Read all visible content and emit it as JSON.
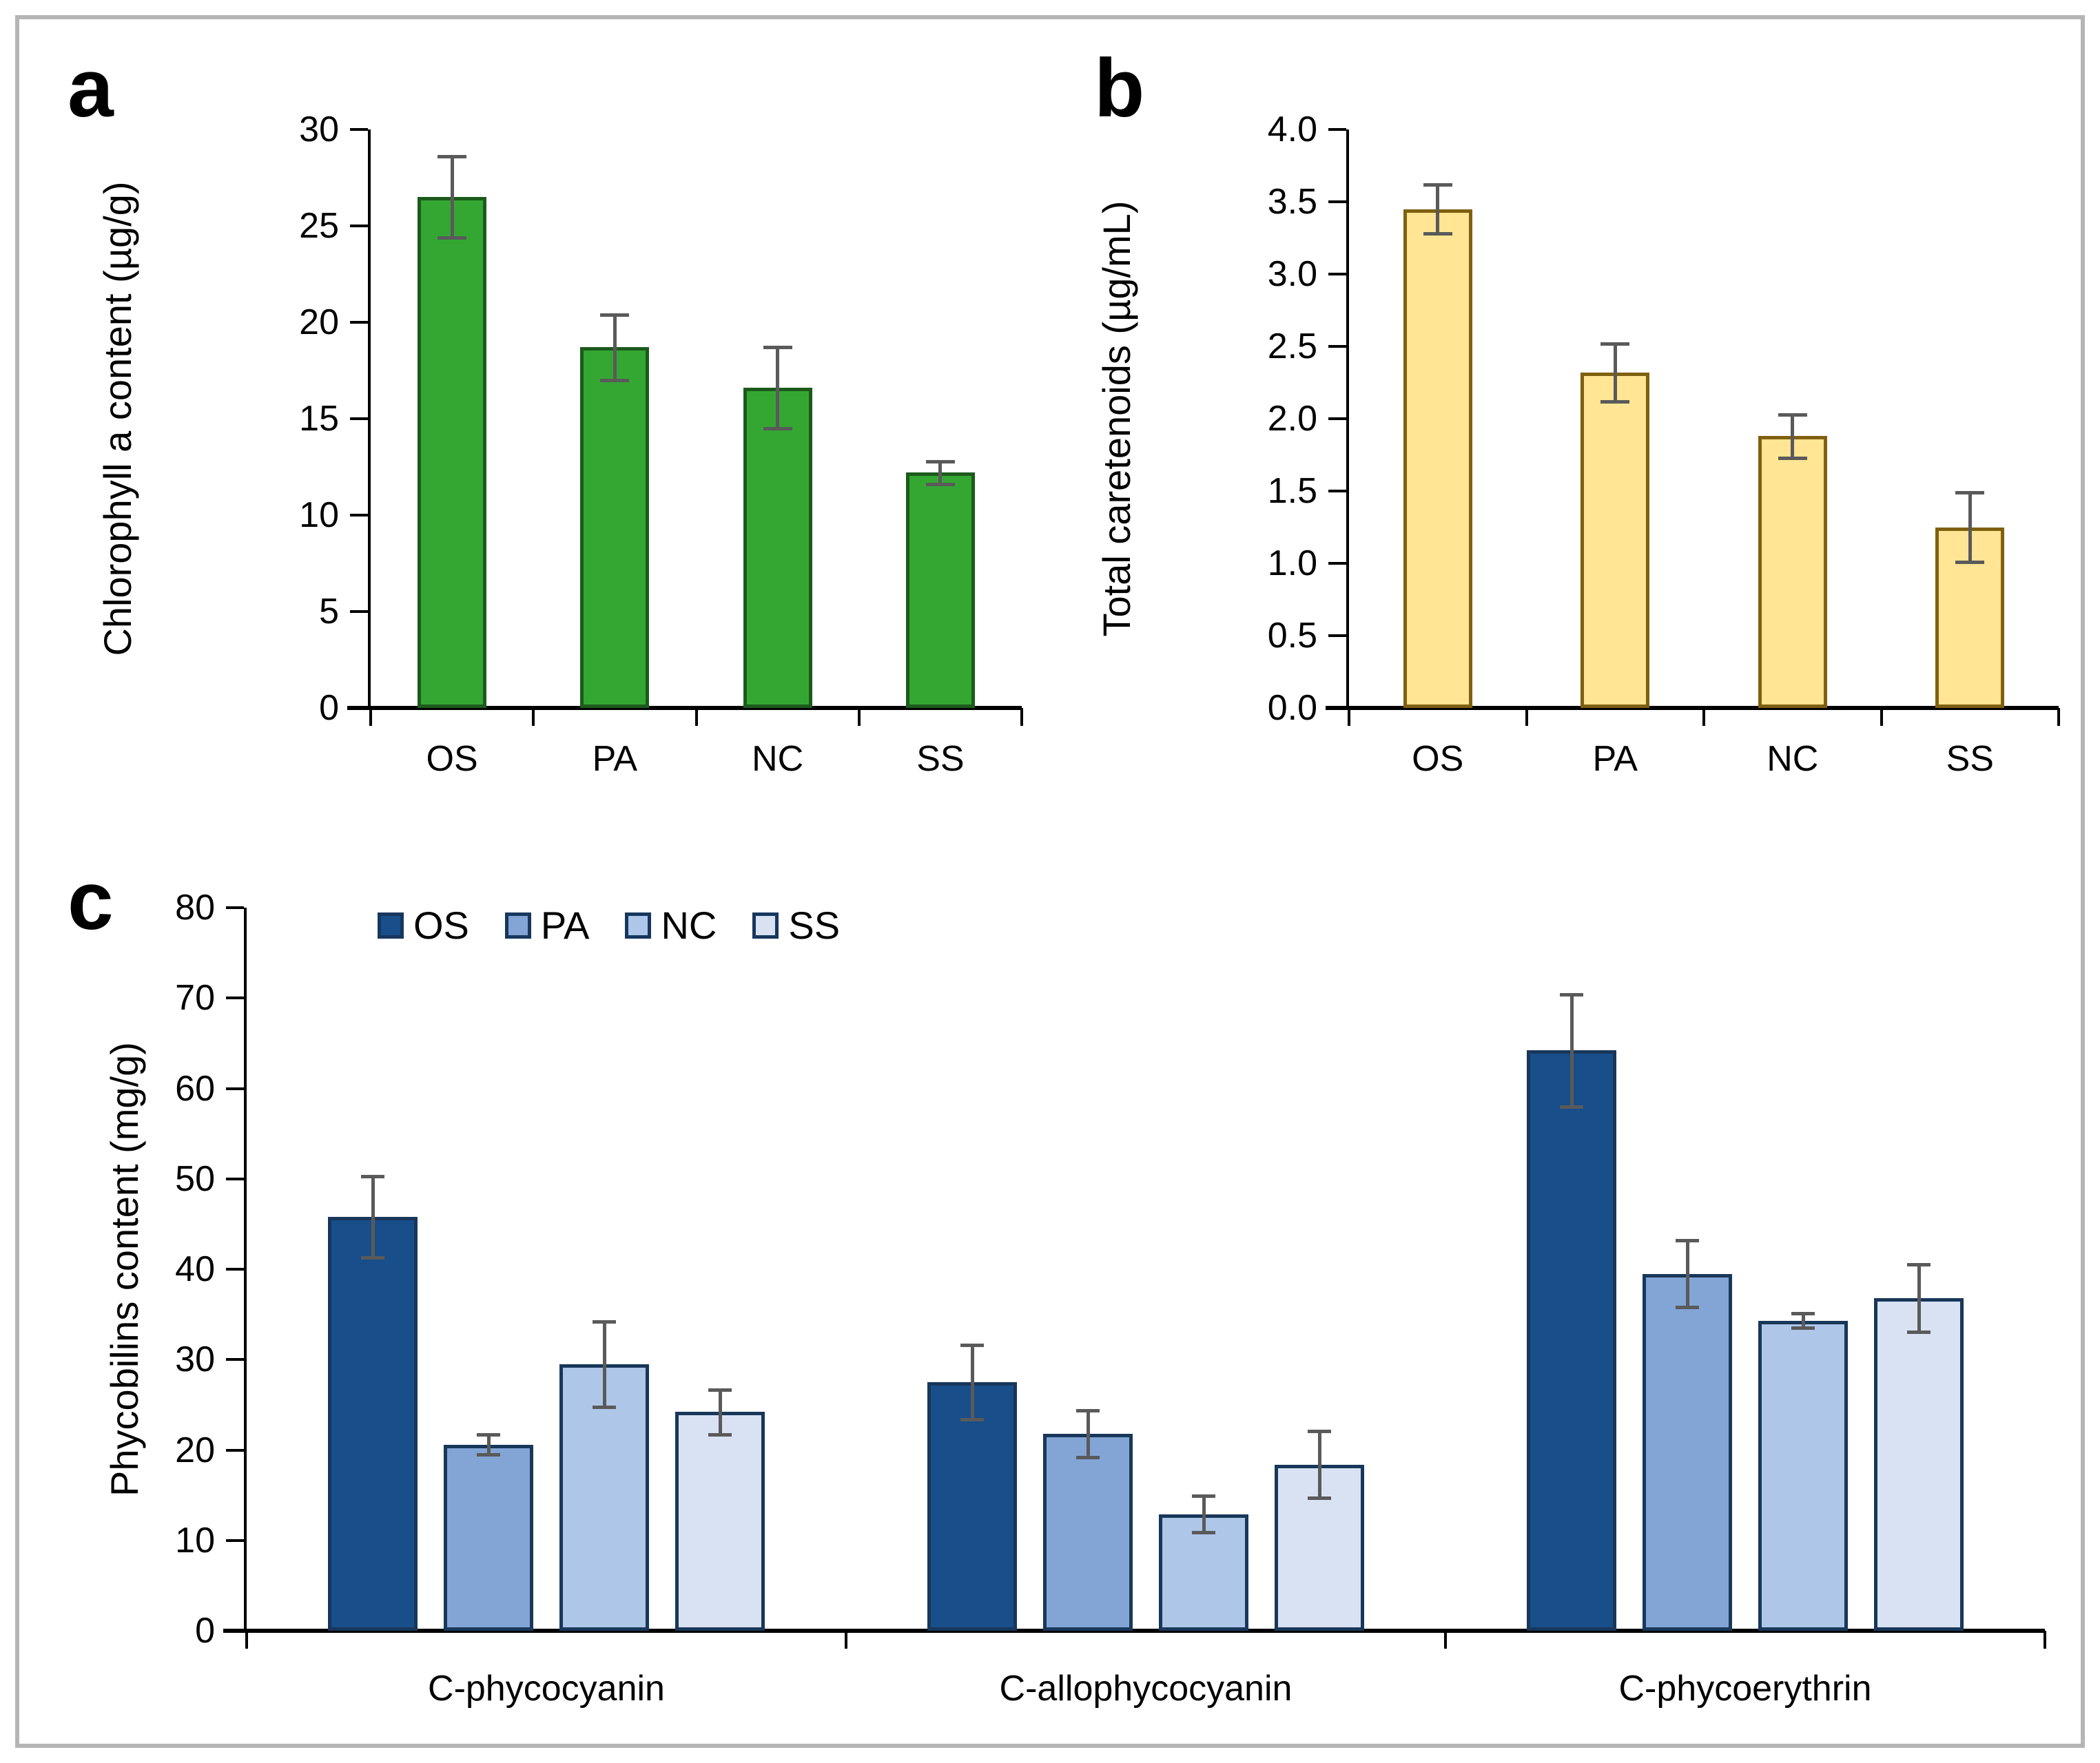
{
  "figure": {
    "frame_color": "#b5b5b5",
    "background_color": "#ffffff",
    "error_bar_color": "#5a5a5a"
  },
  "chart_data": [
    {
      "type": "bar",
      "panel_label": "a",
      "ylabel": "Chlorophyll a content (µg/g)",
      "xlabel": "",
      "categories": [
        "OS",
        "PA",
        "NC",
        "SS"
      ],
      "values": [
        26.5,
        18.7,
        16.6,
        12.2
      ],
      "errors": [
        2.1,
        1.7,
        2.1,
        0.6
      ],
      "ylim": [
        0,
        30
      ],
      "ytick_step": 5,
      "ytick_decimals": 0,
      "grid": "off",
      "bar_fill": "#34a733",
      "bar_border": "#1c5a1c"
    },
    {
      "type": "bar",
      "panel_label": "b",
      "ylabel": "Total caretenoids (µg/mL)",
      "xlabel": "",
      "categories": [
        "OS",
        "PA",
        "NC",
        "SS"
      ],
      "values": [
        3.45,
        2.32,
        1.88,
        1.25
      ],
      "errors": [
        0.17,
        0.2,
        0.15,
        0.24
      ],
      "ylim": [
        0,
        4
      ],
      "ytick_step": 0.5,
      "ytick_decimals": 1,
      "grid": "off",
      "bar_fill": "#ffe594",
      "bar_border": "#7f6011"
    },
    {
      "type": "bar",
      "panel_label": "c",
      "ylabel": "Phycobilins content (mg/g)",
      "xlabel": "",
      "categories": [
        "C-phycocyanin",
        "C-allophycocyanin",
        "C-phycoerythrin"
      ],
      "series": [
        {
          "name": "OS",
          "fill": "#184e8a",
          "values": [
            45.8,
            27.5,
            64.2
          ],
          "errors": [
            4.5,
            4.1,
            6.2
          ]
        },
        {
          "name": "PA",
          "fill": "#82a5d6",
          "values": [
            20.6,
            21.8,
            39.5
          ],
          "errors": [
            1.1,
            2.6,
            3.7
          ]
        },
        {
          "name": "NC",
          "fill": "#aec6e8",
          "values": [
            29.5,
            12.9,
            34.3
          ],
          "errors": [
            4.7,
            2.0,
            0.8
          ]
        },
        {
          "name": "SS",
          "fill": "#d9e2f3",
          "values": [
            24.2,
            18.4,
            36.8
          ],
          "errors": [
            2.5,
            3.7,
            3.7
          ]
        }
      ],
      "series_border": "#183759",
      "ylim": [
        0,
        80
      ],
      "ytick_step": 10,
      "ytick_decimals": 0,
      "grid": "off",
      "legend_position": "top-left-inside",
      "legend_labels": [
        "OS",
        "PA",
        "NC",
        "SS"
      ]
    }
  ]
}
